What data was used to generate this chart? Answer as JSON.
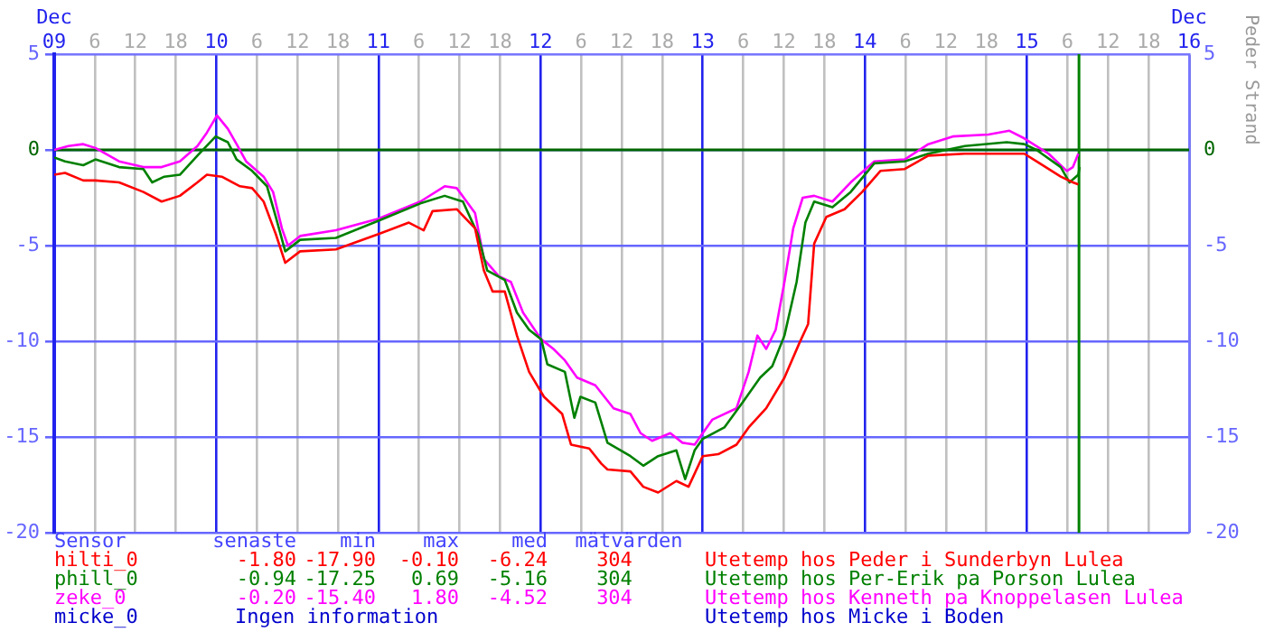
{
  "chart_data": {
    "type": "line",
    "marker": "none",
    "line_style": "solid",
    "grid": true,
    "xlim": [
      "--12-09",
      "--12-16"
    ],
    "xticks": [
      {
        "value": "--12-09",
        "label": "Dec\n09"
      },
      {
        "value": "--12-09T06:00",
        "label": "6"
      },
      {
        "value": "--12-09T12:00",
        "label": "12"
      },
      {
        "value": "--12-09T18:00",
        "label": "18"
      },
      {
        "value": "--12-10",
        "label": "10"
      },
      {
        "value": "--12-10T06:00",
        "label": "6"
      },
      {
        "value": "--12-10T12:00",
        "label": "12"
      },
      {
        "value": "--12-10T18:00",
        "label": "18"
      },
      {
        "value": "--12-11",
        "label": "11"
      },
      {
        "value": "--12-11T06:00",
        "label": "6"
      },
      {
        "value": "--12-11T12:00",
        "label": "12"
      },
      {
        "value": "--12-11T18:00",
        "label": "18"
      },
      {
        "value": "--12-12",
        "label": "12"
      },
      {
        "value": "--12-12T06:00",
        "label": "6"
      },
      {
        "value": "--12-12T12:00",
        "label": "12"
      },
      {
        "value": "--12-12T18:00",
        "label": "18"
      },
      {
        "value": "--12-13",
        "label": "13"
      },
      {
        "value": "--12-13T06:00",
        "label": "6"
      },
      {
        "value": "--12-13T12:00",
        "label": "12"
      },
      {
        "value": "--12-13T18:00",
        "label": "18"
      },
      {
        "value": "--12-14",
        "label": "14"
      },
      {
        "value": "--12-14T06:00",
        "label": "6"
      },
      {
        "value": "--12-14T12:00",
        "label": "12"
      },
      {
        "value": "--12-14T18:00",
        "label": "18"
      },
      {
        "value": "--12-15",
        "label": "15"
      },
      {
        "value": "--12-15T06:00",
        "label": "6"
      },
      {
        "value": "--12-15T12:00",
        "label": "12"
      },
      {
        "value": "--12-15T18:00",
        "label": "18"
      },
      {
        "value": "--12-16",
        "label": "Dec\n16"
      }
    ],
    "ylim": [
      -20,
      5
    ],
    "yticks": [
      -20,
      -15,
      -10,
      -5,
      0,
      5
    ],
    "y2lim": [
      -20,
      5
    ],
    "y2ticks": [
      -20,
      -15,
      -10,
      -5,
      0,
      5
    ],
    "ref_lines": [
      {
        "axis": "y",
        "value": 0,
        "color": "#006600"
      },
      {
        "axis": "x",
        "value": "--12-15T07:42",
        "color": "#008000"
      }
    ],
    "series": [
      {
        "name": "hilti_0",
        "color": "#ff0000",
        "x": [
          "--12-09T00:00",
          "--12-09T01:36",
          "--12-09T04:18",
          "--12-09T06:06",
          "--12-09T09:36",
          "--12-09T13:12",
          "--12-09T15:54",
          "--12-09T18:36",
          "--12-09T21:12",
          "--12-09T22:36",
          "--12-10T00:48",
          "--12-10T03:30",
          "--12-10T05:18",
          "--12-10T07:00",
          "--12-10T08:48",
          "--12-10T10:12",
          "--12-10T12:24",
          "--12-10T17:42",
          "--12-11T00:00",
          "--12-11T04:30",
          "--12-11T06:42",
          "--12-11T08:00",
          "--12-11T11:36",
          "--12-11T14:18",
          "--12-11T15:36",
          "--12-11T16:54",
          "--12-11T18:42",
          "--12-11T20:30",
          "--12-11T22:18",
          "--12-12T00:30",
          "--12-12T03:12",
          "--12-12T04:30",
          "--12-12T07:12",
          "--12-12T09:00",
          "--12-12T09:54",
          "--12-12T13:18",
          "--12-12T15:12",
          "--12-12T17:24",
          "--12-12T20:06",
          "--12-12T21:54",
          "--12-13T00:00",
          "--12-13T02:18",
          "--12-13T05:00",
          "--12-13T06:48",
          "--12-13T09:24",
          "--12-13T12:06",
          "--12-13T14:18",
          "--12-13T15:36",
          "--12-13T16:30",
          "--12-13T18:18",
          "--12-13T21:00",
          "--12-13T23:36",
          "--12-14T02:18",
          "--12-14T05:54",
          "--12-14T09:24",
          "--12-14T14:48",
          "--12-14T21:00",
          "--12-14T23:36",
          "--12-15T01:24",
          "--12-15T05:00",
          "--12-15T06:48",
          "--12-15T07:36"
        ],
        "values": [
          -1.3,
          -1.2,
          -1.6,
          -1.6,
          -1.7,
          -2.2,
          -2.7,
          -2.4,
          -1.7,
          -1.3,
          -1.4,
          -1.9,
          -2.0,
          -2.7,
          -4.4,
          -5.9,
          -5.3,
          -5.2,
          -4.4,
          -3.8,
          -4.2,
          -3.2,
          -3.1,
          -4.1,
          -6.3,
          -7.4,
          -7.4,
          -9.7,
          -11.6,
          -12.9,
          -13.8,
          -15.4,
          -15.6,
          -16.4,
          -16.7,
          -16.8,
          -17.6,
          -17.9,
          -17.3,
          -17.6,
          -16.0,
          -15.9,
          -15.4,
          -14.5,
          -13.5,
          -11.9,
          -10.1,
          -9.1,
          -4.9,
          -3.5,
          -3.1,
          -2.2,
          -1.1,
          -1.0,
          -0.3,
          -0.2,
          -0.2,
          -0.2,
          -0.6,
          -1.4,
          -1.7,
          -1.8
        ]
      },
      {
        "name": "phill_0",
        "color": "#008000",
        "x": [
          "--12-09T00:00",
          "--12-09T01:36",
          "--12-09T04:18",
          "--12-09T06:06",
          "--12-09T09:36",
          "--12-09T13:12",
          "--12-09T14:30",
          "--12-09T16:18",
          "--12-09T18:36",
          "--12-09T21:12",
          "--12-09T23:54",
          "--12-10T01:42",
          "--12-10T03:00",
          "--12-10T05:18",
          "--12-10T07:30",
          "--12-10T08:48",
          "--12-10T10:12",
          "--12-10T12:24",
          "--12-10T17:42",
          "--12-11T00:00",
          "--12-11T06:12",
          "--12-11T09:48",
          "--12-11T12:30",
          "--12-11T14:42",
          "--12-11T16:06",
          "--12-11T18:42",
          "--12-11T20:30",
          "--12-11T22:18",
          "--12-12T00:06",
          "--12-12T01:00",
          "--12-12T03:36",
          "--12-12T05:00",
          "--12-12T05:54",
          "--12-12T08:06",
          "--12-12T09:54",
          "--12-12T13:18",
          "--12-12T15:12",
          "--12-12T17:24",
          "--12-12T20:06",
          "--12-12T21:24",
          "--12-12T22:48",
          "--12-13T00:00",
          "--12-13T03:12",
          "--12-13T05:54",
          "--12-13T08:30",
          "--12-13T10:18",
          "--12-13T12:06",
          "--12-13T13:54",
          "--12-13T15:12",
          "--12-13T16:30",
          "--12-13T19:12",
          "--12-13T21:54",
          "--12-14T01:24",
          "--12-14T05:54",
          "--12-14T09:24",
          "--12-14T14:48",
          "--12-14T21:00",
          "--12-14T23:36",
          "--12-15T01:24",
          "--12-15T05:00",
          "--12-15T06:18",
          "--12-15T07:36",
          "--12-15T07:48"
        ],
        "values": [
          -0.4,
          -0.6,
          -0.8,
          -0.5,
          -0.9,
          -1.0,
          -1.7,
          -1.4,
          -1.3,
          -0.3,
          0.7,
          0.4,
          -0.5,
          -1.1,
          -1.9,
          -3.5,
          -5.3,
          -4.7,
          -4.6,
          -3.7,
          -2.8,
          -2.4,
          -2.7,
          -4.4,
          -6.3,
          -6.8,
          -8.5,
          -9.4,
          -9.9,
          -11.2,
          -11.6,
          -14.0,
          -12.9,
          -13.2,
          -15.3,
          -16.0,
          -16.5,
          -16.0,
          -15.7,
          -17.2,
          -15.7,
          -15.1,
          -14.5,
          -13.2,
          -11.9,
          -11.3,
          -9.7,
          -6.9,
          -3.8,
          -2.7,
          -3.0,
          -2.2,
          -0.7,
          -0.6,
          -0.2,
          0.2,
          0.4,
          0.3,
          0.0,
          -0.9,
          -1.7,
          -1.3,
          -0.9
        ]
      },
      {
        "name": "zeke_0",
        "color": "#ff00ff",
        "x": [
          "--12-09T00:00",
          "--12-09T02:06",
          "--12-09T04:18",
          "--12-09T06:06",
          "--12-09T09:36",
          "--12-09T13:12",
          "--12-09T15:54",
          "--12-09T18:36",
          "--12-09T21:12",
          "--12-09T22:36",
          "--12-10T00:06",
          "--12-10T01:42",
          "--12-10T03:00",
          "--12-10T04:24",
          "--12-10T07:00",
          "--12-10T08:24",
          "--12-10T09:42",
          "--12-10T10:36",
          "--12-10T12:24",
          "--12-10T17:42",
          "--12-11T00:00",
          "--12-11T06:12",
          "--12-11T09:48",
          "--12-11T11:36",
          "--12-11T14:18",
          "--12-11T15:36",
          "--12-11T17:48",
          "--12-11T19:36",
          "--12-11T21:24",
          "--12-12T00:06",
          "--12-12T01:54",
          "--12-12T03:36",
          "--12-12T05:24",
          "--12-12T08:06",
          "--12-12T09:54",
          "--12-12T10:48",
          "--12-12T13:18",
          "--12-12T14:48",
          "--12-12T16:30",
          "--12-12T19:12",
          "--12-12T21:00",
          "--12-12T22:48",
          "--12-13T00:00",
          "--12-13T01:24",
          "--12-13T05:00",
          "--12-13T06:48",
          "--12-13T08:06",
          "--12-13T09:24",
          "--12-13T10:48",
          "--12-13T12:06",
          "--12-13T13:24",
          "--12-13T14:48",
          "--12-13T16:30",
          "--12-13T19:12",
          "--12-13T21:54",
          "--12-14T01:24",
          "--12-14T05:54",
          "--12-14T09:24",
          "--12-14T13:00",
          "--12-14T18:18",
          "--12-14T21:24",
          "--12-14T23:36",
          "--12-15T03:12",
          "--12-15T05:54",
          "--12-15T06:48",
          "--12-15T07:36"
        ],
        "values": [
          0.0,
          0.2,
          0.3,
          0.1,
          -0.6,
          -0.9,
          -0.9,
          -0.6,
          0.2,
          0.9,
          1.8,
          1.1,
          0.3,
          -0.6,
          -1.4,
          -2.2,
          -4.1,
          -5.0,
          -4.5,
          -4.2,
          -3.6,
          -2.7,
          -1.9,
          -2.0,
          -3.3,
          -5.7,
          -6.6,
          -6.9,
          -8.5,
          -9.9,
          -10.4,
          -11.0,
          -11.9,
          -12.3,
          -13.1,
          -13.5,
          -13.8,
          -14.8,
          -15.2,
          -14.8,
          -15.3,
          -15.4,
          -14.8,
          -14.1,
          -13.5,
          -11.6,
          -9.7,
          -10.4,
          -9.4,
          -6.9,
          -4.1,
          -2.5,
          -2.4,
          -2.7,
          -1.7,
          -0.6,
          -0.5,
          0.3,
          0.7,
          0.8,
          1.0,
          0.6,
          -0.2,
          -1.1,
          -0.9,
          -0.2
        ]
      }
    ],
    "annotations": [
      "Peder Strand",
      "Sensor",
      "senaste",
      "min",
      "max",
      "med",
      "mätvärden",
      "-1.80",
      "-17.90",
      "-0.10",
      "-6.24",
      "304",
      "Utetemp hos Peder i Sunderbyn Lulea",
      "-0.94",
      "-17.25",
      "0.69",
      "-5.16",
      "304",
      "Utetemp hos Per-Erik pa Porson Lulea",
      "-0.20",
      "-15.40",
      "1.80",
      "-4.52",
      "304",
      "Utetemp hos Kenneth pa Knoppelasen Lulea",
      "micke_0",
      "Ingen information",
      "Utetemp hos Micke i Boden"
    ]
  }
}
